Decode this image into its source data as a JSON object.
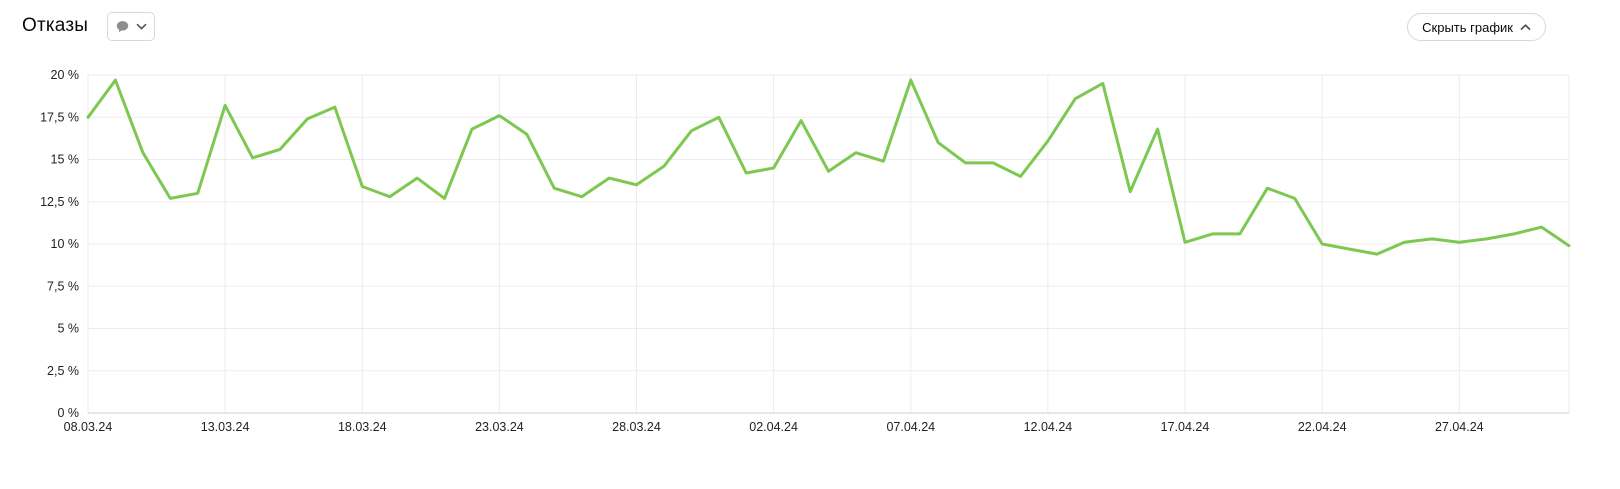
{
  "header": {
    "title": "Отказы",
    "metric_dropdown": {
      "icon": "speech-bubble",
      "chevron": "chevron-down"
    },
    "hide_chart_label": "Скрыть график"
  },
  "colors": {
    "line_green": "#7dc850",
    "weekend_red": "#d0342c",
    "grid": "#ececec",
    "axis": "#cfcfcf",
    "label": "#222222"
  },
  "chart_data": {
    "type": "line",
    "title": "Отказы",
    "xlabel": "",
    "ylabel": "",
    "ylim": [
      0,
      20
    ],
    "grid": true,
    "legend": "none",
    "x": [
      "08.03.24",
      "09.03.24",
      "10.03.24",
      "11.03.24",
      "12.03.24",
      "13.03.24",
      "14.03.24",
      "15.03.24",
      "16.03.24",
      "17.03.24",
      "18.03.24",
      "19.03.24",
      "20.03.24",
      "21.03.24",
      "22.03.24",
      "23.03.24",
      "24.03.24",
      "25.03.24",
      "26.03.24",
      "27.03.24",
      "28.03.24",
      "29.03.24",
      "30.03.24",
      "31.03.24",
      "01.04.24",
      "02.04.24",
      "03.04.24",
      "04.04.24",
      "05.04.24",
      "06.04.24",
      "07.04.24",
      "08.04.24",
      "09.04.24",
      "10.04.24",
      "11.04.24",
      "12.04.24",
      "13.04.24",
      "14.04.24",
      "15.04.24",
      "16.04.24",
      "17.04.24",
      "18.04.24",
      "19.04.24",
      "20.04.24",
      "21.04.24",
      "22.04.24",
      "23.04.24",
      "24.04.24",
      "25.04.24",
      "26.04.24",
      "27.04.24",
      "28.04.24",
      "29.04.24",
      "30.04.24",
      "01.05.24"
    ],
    "values": [
      17.5,
      19.7,
      15.4,
      12.7,
      13.0,
      18.2,
      15.1,
      15.6,
      17.4,
      18.1,
      13.4,
      12.8,
      13.9,
      12.7,
      16.8,
      17.6,
      16.5,
      13.3,
      12.8,
      13.9,
      13.5,
      14.6,
      16.7,
      17.5,
      14.2,
      14.5,
      17.3,
      14.3,
      15.4,
      14.9,
      19.7,
      16.0,
      14.8,
      14.8,
      14.0,
      16.1,
      18.6,
      19.5,
      13.1,
      16.8,
      10.1,
      10.6,
      10.6,
      13.3,
      12.7,
      10.0,
      9.7,
      9.4,
      10.1,
      10.3,
      10.1,
      10.3,
      10.6,
      11.0,
      9.9
    ],
    "y_tick_values": [
      20,
      17.5,
      15,
      12.5,
      10,
      7.5,
      5,
      2.5,
      0
    ],
    "y_tick_labels": [
      "20 %",
      "17,5 %",
      "15 %",
      "12,5 %",
      "10 %",
      "7,5 %",
      "5 %",
      "2,5 %",
      "0 %"
    ],
    "x_tick_indices": [
      0,
      5,
      10,
      15,
      20,
      25,
      30,
      35,
      40,
      45,
      50
    ],
    "x_tick_red_indices": [
      15,
      30,
      50
    ]
  }
}
